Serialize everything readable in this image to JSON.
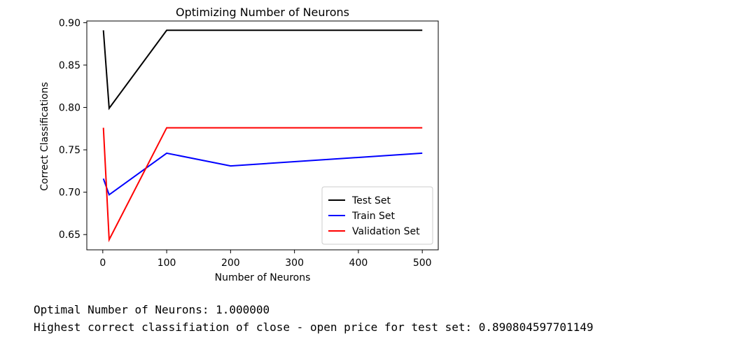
{
  "chart_data": {
    "type": "line",
    "title": "Optimizing Number of Neurons",
    "xlabel": "Number of Neurons",
    "ylabel": "Correct Classifications",
    "x": [
      1,
      10,
      100,
      200,
      500
    ],
    "xlim": [
      -25,
      525
    ],
    "ylim": [
      0.632,
      0.902
    ],
    "xticks": [
      0,
      100,
      200,
      300,
      400,
      500
    ],
    "yticks": [
      0.65,
      0.7,
      0.75,
      0.8,
      0.85,
      0.9
    ],
    "ytick_labels": [
      "0.65",
      "0.70",
      "0.75",
      "0.80",
      "0.85",
      "0.90"
    ],
    "legend_position": "lower-right",
    "grid": false,
    "series": [
      {
        "name": "Test Set",
        "color": "#000000",
        "values": [
          0.891,
          0.799,
          0.891,
          0.891,
          0.891
        ]
      },
      {
        "name": "Train Set",
        "color": "#0000ff",
        "values": [
          0.716,
          0.697,
          0.746,
          0.731,
          0.746
        ]
      },
      {
        "name": "Validation Set",
        "color": "#ff0000",
        "values": [
          0.776,
          0.644,
          0.776,
          0.776,
          0.776
        ]
      }
    ]
  },
  "output": {
    "line1": "Optimal Number of Neurons: 1.000000",
    "line2": "Highest correct classifiation of close - open price for test set: 0.890804597701149"
  }
}
